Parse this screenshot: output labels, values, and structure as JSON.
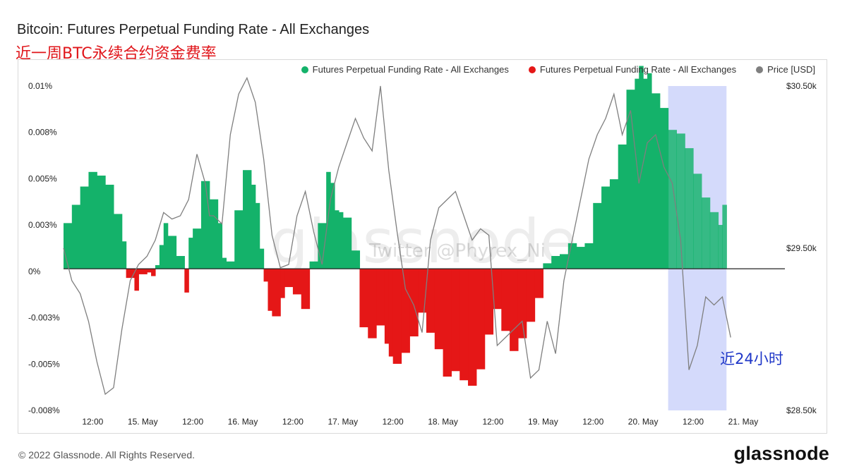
{
  "header": {
    "title": "Bitcoin: Futures Perpetual Funding Rate - All Exchanges",
    "subtitle": "近一周BTC永续合约资金费率"
  },
  "legend": [
    {
      "label": "Futures Perpetual Funding Rate - All Exchanges",
      "color": "#14b26a"
    },
    {
      "label": "Futures Perpetual Funding Rate - All Exchanges",
      "color": "#e51717"
    },
    {
      "label": "Price [USD]",
      "color": "#7f7f7f"
    }
  ],
  "watermark": {
    "logo": "glassnode",
    "text": "Twitter @Phyrex_Ni"
  },
  "annotation": {
    "label": "近24小时"
  },
  "footer": {
    "copyright": "© 2022 Glassnode. All Rights Reserved.",
    "brand": "glassnode"
  },
  "colors": {
    "positive": "#14b26a",
    "negative": "#e51717",
    "price": "#7f7f7f",
    "highlight": "#cdd3fa",
    "annotation_text": "#1f37c8"
  },
  "chart_data": {
    "type": "bar",
    "x_ticks": [
      "12:00",
      "15. May",
      "12:00",
      "16. May",
      "12:00",
      "17. May",
      "12:00",
      "18. May",
      "12:00",
      "19. May",
      "12:00",
      "20. May",
      "12:00",
      "21. May"
    ],
    "y_left": {
      "ticks": [
        "0.01%",
        "0.008%",
        "0.005%",
        "0.003%",
        "0%",
        "-0.003%",
        "-0.005%",
        "-0.008%"
      ],
      "range_pct": [
        -0.00775,
        0.01
      ]
    },
    "y_right": {
      "ticks": [
        "$30.50k",
        "$29.50k",
        "$28.50k"
      ],
      "range_usd": [
        28500,
        30500
      ]
    },
    "x_range_hours": [
      -7,
      166
    ],
    "highlight_range_hours": [
      138,
      152
    ],
    "funding_rate_series": {
      "name": "Futures Perpetual Funding Rate - All Exchanges",
      "unit": "%",
      "hours": [
        -7,
        -5,
        -3,
        -1,
        1,
        3,
        5,
        7,
        8,
        10,
        11,
        13,
        14,
        15,
        16,
        17,
        18,
        20,
        22,
        23,
        24,
        26,
        28,
        30,
        31,
        32,
        34,
        36,
        38,
        39,
        40,
        41,
        42,
        43,
        45,
        46,
        48,
        50,
        52,
        54,
        56,
        57,
        58,
        59,
        60,
        62,
        64,
        66,
        68,
        70,
        71,
        72,
        74,
        76,
        78,
        80,
        82,
        84,
        86,
        88,
        90,
        92,
        94,
        96,
        98,
        100,
        102,
        104,
        106,
        108,
        110,
        112,
        114,
        116,
        118,
        120,
        122,
        124,
        126,
        128,
        130,
        131,
        132,
        133,
        134,
        136,
        138,
        140,
        142,
        144,
        146,
        148,
        150,
        151,
        152
      ],
      "values": [
        0.0025,
        0.0035,
        0.0045,
        0.0053,
        0.0051,
        0.0046,
        0.003,
        0.0015,
        -0.0005,
        -0.0012,
        -0.0003,
        -0.0002,
        -0.0004,
        0.0002,
        0.0013,
        0.0025,
        0.0018,
        0.0007,
        -0.0013,
        0.0017,
        0.0022,
        0.0048,
        0.0038,
        0.0025,
        0.0006,
        0.0004,
        0.0032,
        0.0054,
        0.0046,
        0.0036,
        0.0011,
        -0.0007,
        -0.0023,
        -0.0026,
        -0.0016,
        -0.001,
        -0.0014,
        -0.0022,
        0.0004,
        0.0025,
        0.0053,
        0.0047,
        0.0032,
        0.0031,
        0.0028,
        0.001,
        -0.0032,
        -0.0038,
        -0.0031,
        -0.0041,
        -0.0048,
        -0.0052,
        -0.0046,
        -0.0037,
        -0.0024,
        -0.0035,
        -0.0044,
        -0.0059,
        -0.0056,
        -0.0061,
        -0.0064,
        -0.0055,
        -0.0036,
        -0.0022,
        -0.0034,
        -0.0045,
        -0.0038,
        -0.0029,
        -0.0016,
        0.0003,
        0.0007,
        0.0008,
        0.0014,
        0.0012,
        0.0014,
        0.0036,
        0.0045,
        0.0049,
        0.0068,
        0.0098,
        0.0104,
        0.0111,
        0.0104,
        0.0107,
        0.0096,
        0.0088,
        0.0076,
        0.0074,
        0.0066,
        0.0052,
        0.0039,
        0.0031,
        0.0024,
        0.0035,
        0.0014
      ]
    },
    "price_series": {
      "name": "Price [USD]",
      "unit": "USD",
      "hours": [
        -7,
        -5,
        -3,
        -1,
        1,
        3,
        5,
        7,
        9,
        11,
        13,
        15,
        17,
        19,
        21,
        23,
        25,
        27,
        28,
        29,
        31,
        33,
        35,
        37,
        39,
        41,
        43,
        45,
        47,
        49,
        51,
        53,
        55,
        57,
        59,
        61,
        63,
        65,
        67,
        69,
        71,
        73,
        75,
        77,
        79,
        81,
        83,
        85,
        87,
        89,
        91,
        93,
        95,
        97,
        99,
        101,
        103,
        105,
        107,
        109,
        111,
        113,
        115,
        117,
        119,
        121,
        123,
        125,
        127,
        129,
        131,
        133,
        135,
        137,
        139,
        141,
        143,
        145,
        147,
        149,
        151,
        153
      ],
      "values": [
        29500,
        29300,
        29220,
        29050,
        28800,
        28600,
        28640,
        29000,
        29300,
        29400,
        29450,
        29550,
        29720,
        29680,
        29700,
        29800,
        30080,
        29900,
        29700,
        29700,
        29650,
        30200,
        30450,
        30550,
        30400,
        30050,
        29580,
        29380,
        29400,
        29700,
        29850,
        29600,
        29400,
        29800,
        30000,
        30150,
        30300,
        30180,
        30100,
        30500,
        29980,
        29600,
        29250,
        29150,
        28980,
        29550,
        29750,
        29800,
        29850,
        29700,
        29550,
        29620,
        29580,
        28900,
        28950,
        29000,
        29050,
        28700,
        28750,
        29050,
        28850,
        29300,
        29550,
        29800,
        30050,
        30200,
        30300,
        30450,
        30200,
        30350,
        29900,
        30150,
        30200,
        30000,
        29900,
        29550,
        28750,
        28900,
        29200,
        29150,
        29200,
        28950
      ]
    }
  }
}
